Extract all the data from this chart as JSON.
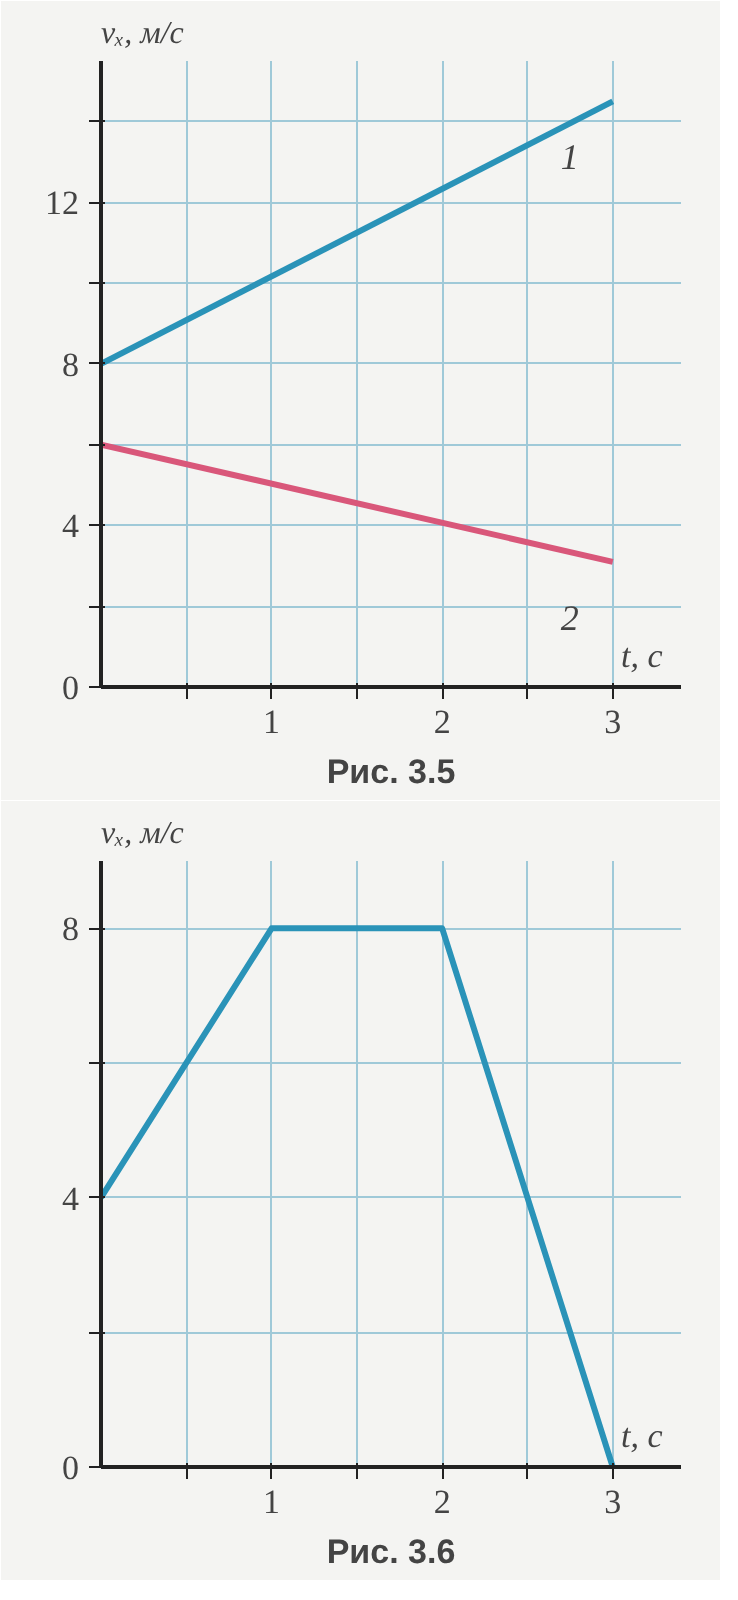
{
  "chart_data": [
    {
      "type": "line",
      "title": "Рис. 3.5",
      "xlabel": "t, с",
      "ylabel": "vₓ, м/с",
      "x": [
        0,
        3
      ],
      "series": [
        {
          "name": "1",
          "color": "#2a93b8",
          "values": [
            8,
            14.5
          ]
        },
        {
          "name": "2",
          "color": "#d9577a",
          "values": [
            6,
            3.1
          ]
        }
      ],
      "xlim": [
        0,
        3.4
      ],
      "ylim": [
        0,
        15.5
      ],
      "xticks": [
        {
          "value": 0.5,
          "label": null
        },
        1,
        {
          "value": 1.5,
          "label": null
        },
        2,
        {
          "value": 2.5,
          "label": null
        },
        3
      ],
      "yticks": [
        0,
        {
          "value": 2,
          "label": null
        },
        4,
        {
          "value": 6,
          "label": null
        },
        8,
        {
          "value": 10,
          "label": null
        },
        12,
        {
          "value": 14,
          "label": null
        }
      ],
      "grid": true,
      "legend": false,
      "marker": "none",
      "line_style": "solid"
    },
    {
      "type": "line",
      "title": "Рис. 3.6",
      "xlabel": "t, с",
      "ylabel": "vₓ, м/с",
      "x": [
        0,
        1,
        2,
        3
      ],
      "series": [
        {
          "color": "#2a93b8",
          "values": [
            4,
            8,
            8,
            0
          ]
        }
      ],
      "xlim": [
        0,
        3.4
      ],
      "ylim": [
        0,
        9
      ],
      "xticks": [
        {
          "value": 0.5,
          "label": null
        },
        1,
        {
          "value": 1.5,
          "label": null
        },
        2,
        {
          "value": 2.5,
          "label": null
        },
        3
      ],
      "yticks": [
        0,
        {
          "value": 2,
          "label": null
        },
        4,
        {
          "value": 6,
          "label": null
        },
        8
      ],
      "grid": true,
      "legend": false,
      "marker": "none",
      "line_style": "solid"
    }
  ]
}
